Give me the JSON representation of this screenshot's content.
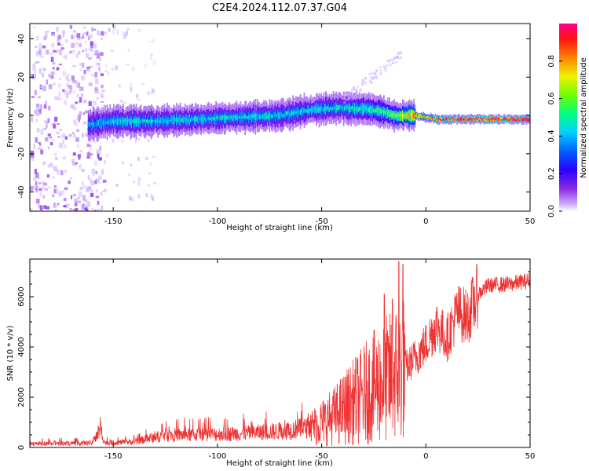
{
  "title": "C2E4.2024.112.07.37.G04",
  "colors": {
    "snr_line": "#ee3333",
    "axis": "#000000",
    "spectrogram_palette": [
      "#ffffff",
      "#c9a8ff",
      "#8a2be2",
      "#4b00ff",
      "#0050ff",
      "#00c8ff",
      "#00ff90",
      "#7dff00",
      "#ffee00",
      "#ff8800",
      "#ff1010",
      "#ff0080"
    ]
  },
  "chart_data": [
    {
      "type": "heatmap",
      "name": "spectrogram",
      "xlabel": "Height of straight line (km)",
      "ylabel": "Frequency (Hz)",
      "xlim": [
        -190,
        50
      ],
      "ylim": [
        -50,
        48
      ],
      "x_ticks": [
        -150,
        -100,
        -50,
        0,
        50
      ],
      "y_ticks": [
        -40,
        -20,
        0,
        20,
        40
      ],
      "colorbar": {
        "label": "Normalized spectral amplitude",
        "range": [
          0,
          1
        ],
        "ticks": [
          0.0,
          0.2,
          0.4,
          0.6,
          0.8
        ]
      },
      "band_ridge": [
        {
          "x": -162,
          "freq": -5,
          "amp": 0.4
        },
        {
          "x": -150,
          "freq": -3,
          "amp": 0.45
        },
        {
          "x": -130,
          "freq": -3,
          "amp": 0.45
        },
        {
          "x": -110,
          "freq": -2,
          "amp": 0.45
        },
        {
          "x": -90,
          "freq": -1,
          "amp": 0.45
        },
        {
          "x": -70,
          "freq": 0,
          "amp": 0.45
        },
        {
          "x": -55,
          "freq": 3,
          "amp": 0.45
        },
        {
          "x": -40,
          "freq": 4,
          "amp": 0.45
        },
        {
          "x": -25,
          "freq": 3,
          "amp": 0.5
        },
        {
          "x": -15,
          "freq": 0,
          "amp": 0.6
        },
        {
          "x": -5,
          "freq": 0,
          "amp": 0.75
        },
        {
          "x": 5,
          "freq": -2,
          "amp": 0.85
        },
        {
          "x": 20,
          "freq": -2,
          "amp": 0.9
        },
        {
          "x": 50,
          "freq": -2,
          "amp": 0.95
        }
      ],
      "noise_region": [
        -190,
        -155
      ]
    },
    {
      "type": "line",
      "name": "snr",
      "xlabel": "Height of straight line (km)",
      "ylabel": "SNR (10 * v/v)",
      "xlim": [
        -190,
        50
      ],
      "ylim": [
        0,
        7500
      ],
      "x_ticks": [
        -150,
        -100,
        -50,
        0,
        50
      ],
      "y_ticks": [
        0,
        2000,
        4000,
        6000
      ],
      "trend": [
        {
          "x": -190,
          "y": 150
        },
        {
          "x": -160,
          "y": 180
        },
        {
          "x": -156,
          "y": 700
        },
        {
          "x": -154,
          "y": 180
        },
        {
          "x": -140,
          "y": 220
        },
        {
          "x": -125,
          "y": 500
        },
        {
          "x": -110,
          "y": 500
        },
        {
          "x": -90,
          "y": 550
        },
        {
          "x": -70,
          "y": 650
        },
        {
          "x": -55,
          "y": 800
        },
        {
          "x": -45,
          "y": 1200
        },
        {
          "x": -35,
          "y": 1800
        },
        {
          "x": -25,
          "y": 2400
        },
        {
          "x": -15,
          "y": 2900
        },
        {
          "x": -8,
          "y": 3300
        },
        {
          "x": 0,
          "y": 4100
        },
        {
          "x": 5,
          "y": 4900
        },
        {
          "x": 10,
          "y": 4300
        },
        {
          "x": 15,
          "y": 5400
        },
        {
          "x": 20,
          "y": 5200
        },
        {
          "x": 25,
          "y": 6100
        },
        {
          "x": 30,
          "y": 6450
        },
        {
          "x": 40,
          "y": 6500
        },
        {
          "x": 50,
          "y": 6650
        }
      ],
      "spikes": [
        {
          "x": -13,
          "y": 7400
        },
        {
          "x": -11,
          "y": 7300
        },
        {
          "x": -20,
          "y": 6100
        },
        {
          "x": -16,
          "y": 5900
        }
      ]
    }
  ]
}
